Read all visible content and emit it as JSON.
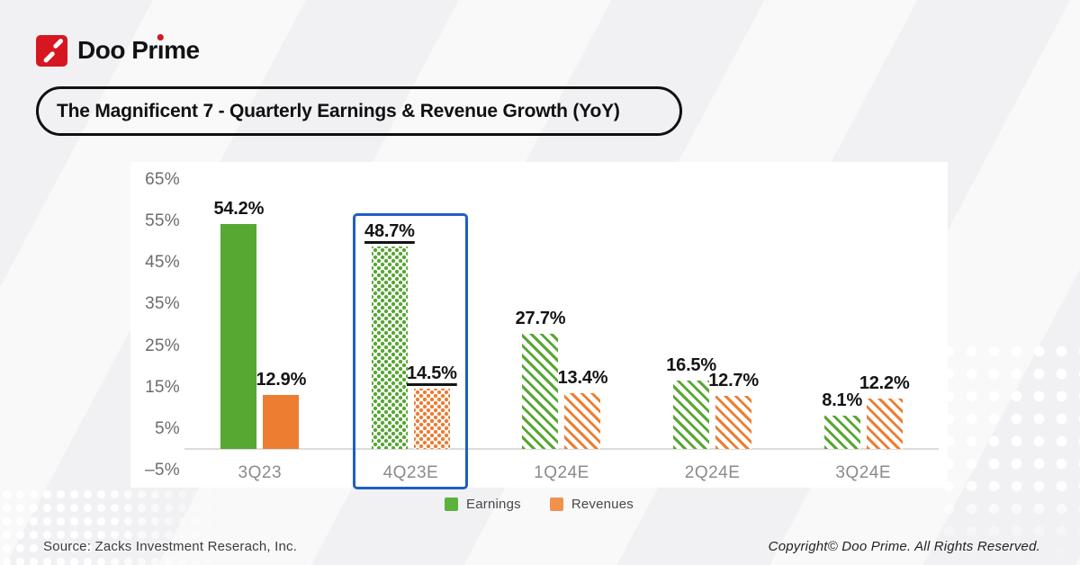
{
  "brand": {
    "name": "Doo Prime",
    "wordmark": {
      "pre": "Doo Pr",
      "dotless_i": "ı",
      "post": "me"
    }
  },
  "title": "The Magnificent 7 - Quarterly Earnings & Revenue Growth (YoY)",
  "chart_data": {
    "type": "bar",
    "categories": [
      "3Q23",
      "4Q23E",
      "1Q24E",
      "2Q24E",
      "3Q24E"
    ],
    "series": [
      {
        "name": "Earnings",
        "values": [
          54.2,
          48.7,
          27.7,
          16.5,
          8.1
        ],
        "labels": [
          "54.2%",
          "48.7%",
          "27.7%",
          "16.5%",
          "8.1%"
        ],
        "color": "#57A733"
      },
      {
        "name": "Revenues",
        "values": [
          12.9,
          14.5,
          13.4,
          12.7,
          12.2
        ],
        "labels": [
          "12.9%",
          "14.5%",
          "13.4%",
          "12.7%",
          "12.2%"
        ],
        "color": "#ED7D31"
      }
    ],
    "bar_styles": [
      "solid",
      "dots",
      "hatch",
      "hatch",
      "hatch"
    ],
    "highlight_index": 1,
    "highlighted_category": "4Q23E",
    "yticks": [
      "65%",
      "55%",
      "45%",
      "35%",
      "25%",
      "15%",
      "5%",
      "–5%"
    ],
    "ytick_values": [
      65,
      55,
      45,
      35,
      25,
      15,
      5,
      -5
    ],
    "ylim": [
      -5,
      65
    ],
    "grid": false,
    "legend_position": "bottom",
    "legend": [
      {
        "label": "Earnings",
        "color": "#5CB13B"
      },
      {
        "label": "Revenues",
        "color": "#F0924E"
      }
    ]
  },
  "footer": {
    "source": "Source: Zacks Investment Reserach, Inc.",
    "copyright": "Copyright© Doo Prime. All Rights Reserved."
  },
  "colors": {
    "green": "#57A733",
    "orange": "#ED7D31",
    "highlight_box": "#1E5EC4",
    "logo_red": "#D6171F",
    "background": "#F1F1F3",
    "card": "#FFFFFF",
    "axis_label": "#6B6C6E",
    "category_label": "#8A8B8E",
    "data_label": "#141414"
  }
}
